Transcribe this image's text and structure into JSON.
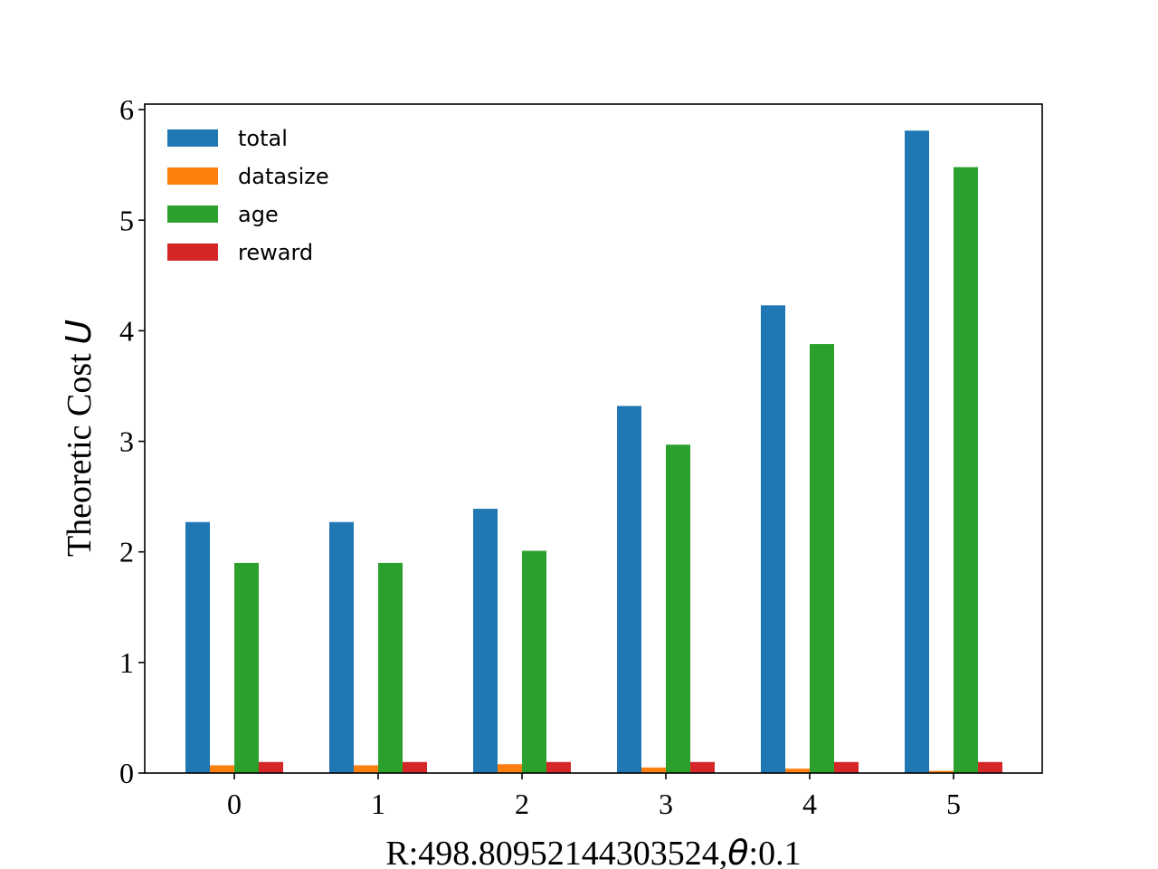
{
  "chart_data": {
    "type": "bar",
    "categories": [
      "0",
      "1",
      "2",
      "3",
      "4",
      "5"
    ],
    "series": [
      {
        "name": "total",
        "color": "#1f77b4",
        "values": [
          2.27,
          2.27,
          2.39,
          3.32,
          4.23,
          5.81
        ]
      },
      {
        "name": "datasize",
        "color": "#ff7f0e",
        "values": [
          0.07,
          0.07,
          0.08,
          0.05,
          0.04,
          0.02
        ]
      },
      {
        "name": "age",
        "color": "#2ca02c",
        "values": [
          1.9,
          1.9,
          2.01,
          2.97,
          3.88,
          5.48
        ]
      },
      {
        "name": "reward",
        "color": "#d62728",
        "values": [
          0.1,
          0.1,
          0.1,
          0.1,
          0.1,
          0.1
        ]
      }
    ],
    "yticks": [
      "0",
      "1",
      "2",
      "3",
      "4",
      "5",
      "6"
    ],
    "ylim": [
      0,
      6.05
    ],
    "ylabel_text": "Theoretic Cost ",
    "ylabel_symbol": "U",
    "xlabel_prefix": "R:498.80952144303524,",
    "xlabel_symbol": "θ",
    "xlabel_suffix": ":0.1",
    "legend_position": "upper-left",
    "grid": false
  }
}
